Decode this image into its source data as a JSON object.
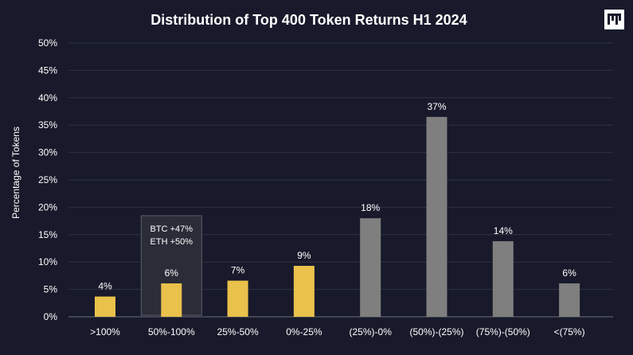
{
  "logo": {
    "name": "pantera-logo-icon"
  },
  "chart_data": {
    "type": "bar",
    "title": "Distribution of Top 400 Token Returns H1 2024",
    "xlabel": "",
    "ylabel": "Percentage of Tokens",
    "ylim": [
      0,
      50
    ],
    "yticks": [
      "0%",
      "5%",
      "10%",
      "15%",
      "20%",
      "25%",
      "30%",
      "35%",
      "40%",
      "45%",
      "50%"
    ],
    "grid": true,
    "categories": [
      ">100%",
      "50%-100%",
      "25%-50%",
      "0%-25%",
      "(25%)-0%",
      "(50%)-(25%)",
      "(75%)-(50%)",
      "<(75%)"
    ],
    "values": [
      4,
      6,
      7,
      9,
      18,
      37,
      14,
      6
    ],
    "plotted_values": [
      3.7,
      6.1,
      6.6,
      9.3,
      18.0,
      36.5,
      13.8,
      6.1
    ],
    "data_labels": [
      "4%",
      "6%",
      "7%",
      "9%",
      "18%",
      "37%",
      "14%",
      "6%"
    ],
    "colors": [
      "#e9c14b",
      "#e9c14b",
      "#e9c14b",
      "#e9c14b",
      "#7f7f7f",
      "#7f7f7f",
      "#7f7f7f",
      "#7f7f7f"
    ],
    "annotation": {
      "category": "50%-100%",
      "lines": [
        "BTC +47%",
        "ETH +50%"
      ]
    }
  },
  "colors": {
    "background": "#181a2b",
    "grid": "#2e3142",
    "text": "#ffffff",
    "annotation_bg": "#2a2c38",
    "annotation_border": "#5b5e6a"
  }
}
